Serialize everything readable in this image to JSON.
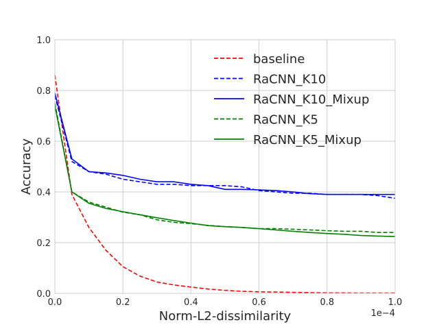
{
  "chart_data": {
    "type": "line",
    "title": "",
    "xlabel": "Norm-L2-dissimilarity",
    "ylabel": "Accuracy",
    "x_offset_label": "1e−4",
    "xlim": [
      0.0,
      1.0
    ],
    "ylim": [
      0.0,
      1.0
    ],
    "xticks": [
      0.0,
      0.2,
      0.4,
      0.6,
      0.8,
      1.0
    ],
    "yticks": [
      0.0,
      0.2,
      0.4,
      0.6,
      0.8,
      1.0
    ],
    "xtick_labels": [
      "0.0",
      "0.2",
      "0.4",
      "0.6",
      "0.8",
      "1.0"
    ],
    "ytick_labels": [
      "0.0",
      "0.2",
      "0.4",
      "0.6",
      "0.8",
      "1.0"
    ],
    "grid": true,
    "legend_position": "top-right",
    "series": [
      {
        "name": "baseline",
        "color": "#ff0000",
        "dash": "dashed",
        "x": [
          0.0,
          0.05,
          0.1,
          0.15,
          0.2,
          0.25,
          0.3,
          0.35,
          0.4,
          0.45,
          0.5,
          0.55,
          0.6,
          0.65,
          0.7,
          0.75,
          0.8,
          0.85,
          0.9,
          0.95,
          1.0
        ],
        "y": [
          0.86,
          0.39,
          0.26,
          0.17,
          0.105,
          0.068,
          0.045,
          0.033,
          0.025,
          0.017,
          0.012,
          0.008,
          0.006,
          0.005,
          0.004,
          0.003,
          0.002,
          0.002,
          0.001,
          0.001,
          0.001
        ]
      },
      {
        "name": "RaCNN_K10",
        "color": "#0000ff",
        "dash": "dashed",
        "x": [
          0.0,
          0.05,
          0.1,
          0.15,
          0.2,
          0.25,
          0.3,
          0.35,
          0.4,
          0.45,
          0.5,
          0.55,
          0.6,
          0.65,
          0.7,
          0.75,
          0.8,
          0.85,
          0.9,
          0.95,
          1.0
        ],
        "y": [
          0.78,
          0.52,
          0.48,
          0.47,
          0.45,
          0.44,
          0.43,
          0.43,
          0.425,
          0.425,
          0.425,
          0.42,
          0.405,
          0.4,
          0.395,
          0.395,
          0.39,
          0.39,
          0.39,
          0.385,
          0.375
        ]
      },
      {
        "name": "RaCNN_K10_Mixup",
        "color": "#0000ff",
        "dash": "solid",
        "x": [
          0.0,
          0.05,
          0.1,
          0.15,
          0.2,
          0.25,
          0.3,
          0.35,
          0.4,
          0.45,
          0.5,
          0.55,
          0.6,
          0.65,
          0.7,
          0.75,
          0.8,
          0.85,
          0.9,
          0.95,
          1.0
        ],
        "y": [
          0.79,
          0.53,
          0.48,
          0.475,
          0.465,
          0.45,
          0.44,
          0.44,
          0.43,
          0.425,
          0.41,
          0.41,
          0.408,
          0.405,
          0.4,
          0.393,
          0.39,
          0.39,
          0.39,
          0.39,
          0.39
        ]
      },
      {
        "name": "RaCNN_K5",
        "color": "#008000",
        "dash": "dashed",
        "x": [
          0.0,
          0.05,
          0.1,
          0.15,
          0.2,
          0.25,
          0.3,
          0.35,
          0.4,
          0.45,
          0.5,
          0.55,
          0.6,
          0.65,
          0.7,
          0.75,
          0.8,
          0.85,
          0.9,
          0.95,
          1.0
        ],
        "y": [
          0.75,
          0.4,
          0.36,
          0.34,
          0.32,
          0.31,
          0.29,
          0.28,
          0.275,
          0.268,
          0.263,
          0.26,
          0.255,
          0.255,
          0.253,
          0.25,
          0.247,
          0.245,
          0.245,
          0.24,
          0.24
        ]
      },
      {
        "name": "RaCNN_K5_Mixup",
        "color": "#008000",
        "dash": "solid",
        "x": [
          0.0,
          0.05,
          0.1,
          0.15,
          0.2,
          0.25,
          0.3,
          0.35,
          0.4,
          0.45,
          0.5,
          0.55,
          0.6,
          0.65,
          0.7,
          0.75,
          0.8,
          0.85,
          0.9,
          0.95,
          1.0
        ],
        "y": [
          0.74,
          0.4,
          0.355,
          0.335,
          0.322,
          0.31,
          0.298,
          0.287,
          0.277,
          0.267,
          0.263,
          0.26,
          0.255,
          0.25,
          0.245,
          0.24,
          0.236,
          0.233,
          0.228,
          0.226,
          0.224
        ]
      }
    ]
  }
}
